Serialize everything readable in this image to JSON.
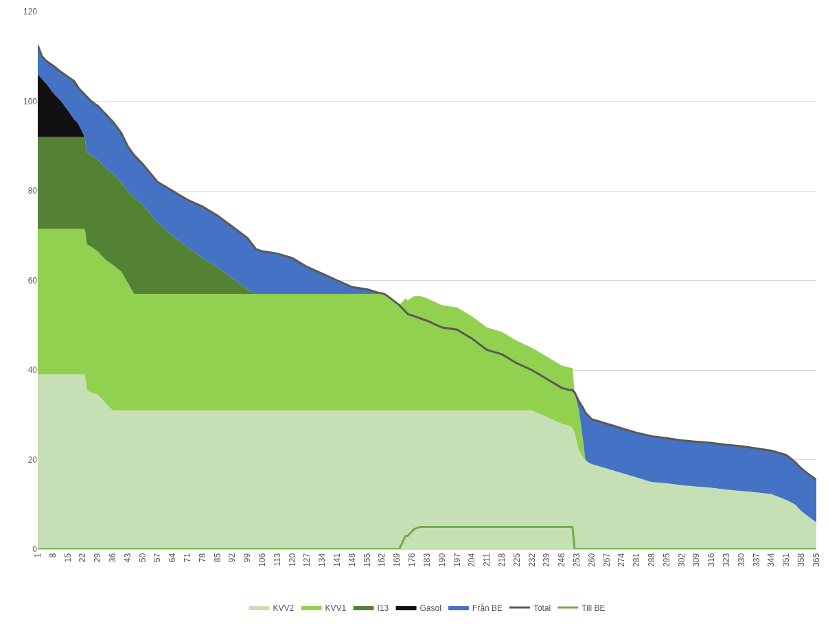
{
  "chart_data": {
    "type": "area",
    "stacked": true,
    "grid": "y",
    "legend": "bottom",
    "x": [
      1,
      3,
      5,
      8,
      12,
      15,
      18,
      20,
      22,
      23,
      24,
      26,
      29,
      33,
      36,
      40,
      43,
      46,
      50,
      57,
      64,
      71,
      78,
      85,
      92,
      99,
      103,
      106,
      113,
      120,
      127,
      134,
      141,
      148,
      155,
      160,
      163,
      166,
      170,
      173,
      174,
      177,
      180,
      183,
      190,
      197,
      204,
      211,
      218,
      225,
      232,
      239,
      246,
      250,
      251,
      252,
      254,
      256,
      257,
      258,
      260,
      267,
      274,
      281,
      288,
      295,
      302,
      309,
      316,
      323,
      330,
      337,
      344,
      351,
      355,
      358,
      362,
      365
    ],
    "xlim": [
      1,
      365
    ],
    "xticks": [
      1,
      8,
      15,
      22,
      29,
      36,
      43,
      50,
      57,
      64,
      71,
      78,
      85,
      92,
      99,
      106,
      113,
      120,
      127,
      134,
      141,
      148,
      155,
      162,
      169,
      176,
      183,
      190,
      197,
      204,
      211,
      218,
      225,
      232,
      239,
      246,
      253,
      260,
      267,
      274,
      281,
      288,
      295,
      302,
      309,
      316,
      323,
      330,
      337,
      344,
      351,
      358,
      365
    ],
    "ylim": [
      0,
      120
    ],
    "yticks": [
      0,
      20,
      40,
      60,
      80,
      100,
      120
    ],
    "series": [
      {
        "name": "KVV2",
        "color": "#c5e0b4",
        "values": [
          39,
          39,
          39,
          39,
          39,
          39,
          39,
          39,
          39,
          39,
          35.5,
          35,
          34.5,
          32.5,
          31,
          31,
          31,
          31,
          31,
          31,
          31,
          31,
          31,
          31,
          31,
          31,
          31,
          31,
          31,
          31,
          31,
          31,
          31,
          31,
          31,
          31,
          31,
          31,
          31,
          31,
          31,
          31,
          31,
          31,
          31,
          31,
          31,
          31,
          31,
          31,
          31,
          29.5,
          28,
          27.5,
          27,
          26,
          22,
          20.5,
          20,
          19.5,
          19,
          18,
          17,
          16,
          15,
          14.7,
          14.3,
          14,
          13.7,
          13.3,
          13,
          12.7,
          12.3,
          11,
          10,
          8.5,
          7,
          6
        ]
      },
      {
        "name": "KVV1",
        "color": "#92d050",
        "values": [
          32.5,
          32.5,
          32.5,
          32.5,
          32.5,
          32.5,
          32.5,
          32.5,
          32.5,
          32.5,
          32.5,
          32.5,
          32,
          32,
          32.5,
          31,
          28.5,
          26,
          26,
          26,
          26,
          26,
          26,
          26,
          26,
          26,
          26,
          26,
          26,
          26,
          26,
          26,
          26,
          26,
          26,
          26,
          26,
          25,
          23.5,
          25,
          24.5,
          25.5,
          25.5,
          25,
          23.5,
          23,
          21,
          18.5,
          17.5,
          15.5,
          14,
          13.5,
          13,
          13,
          13.5,
          9,
          9,
          3.5,
          0,
          0,
          0,
          0,
          0,
          0,
          0,
          0,
          0,
          0,
          0,
          0,
          0,
          0,
          0,
          0,
          0,
          0,
          0,
          0
        ]
      },
      {
        "name": "I13",
        "color": "#548235",
        "values": [
          20.5,
          20.5,
          20.5,
          20.5,
          20.5,
          20.5,
          20.5,
          20.5,
          20.5,
          20.5,
          20.5,
          20.5,
          20.5,
          20.5,
          20.5,
          20,
          20.5,
          21.5,
          20,
          16,
          13,
          10.5,
          8,
          6,
          3.5,
          1,
          0,
          0,
          0,
          0,
          0,
          0,
          0,
          0,
          0,
          0,
          0,
          0,
          0,
          0,
          0,
          0,
          0,
          0,
          0,
          0,
          0,
          0,
          0,
          0,
          0,
          0,
          0,
          0,
          0,
          0,
          0,
          0,
          0,
          0,
          0,
          0,
          0,
          0,
          0,
          0,
          0,
          0,
          0,
          0,
          0,
          0,
          0,
          0,
          0,
          0,
          0,
          0
        ]
      },
      {
        "name": "Gasol",
        "color": "#111111",
        "values": [
          14,
          13,
          12,
          10,
          8,
          6,
          4,
          3,
          1,
          0,
          0,
          0,
          0,
          0,
          0,
          0,
          0,
          0,
          0,
          0,
          0,
          0,
          0,
          0,
          0,
          0,
          0,
          0,
          0,
          0,
          0,
          0,
          0,
          0,
          0,
          0,
          0,
          0,
          0,
          0,
          0,
          0,
          0,
          0,
          0,
          0,
          0,
          0,
          0,
          0,
          0,
          0,
          0,
          0,
          0,
          0,
          0,
          0,
          0,
          0,
          0,
          0,
          0,
          0,
          0,
          0,
          0,
          0,
          0,
          0,
          0,
          0,
          0,
          0,
          0,
          0,
          0,
          0
        ]
      },
      {
        "name": "Från BE",
        "color": "#4472c4",
        "values": [
          6.5,
          5,
          5,
          6,
          6.5,
          7.5,
          8.5,
          8,
          9,
          9.5,
          12.5,
          12,
          12,
          12,
          11.5,
          11,
          10,
          9.5,
          9,
          9,
          10,
          10.5,
          11.5,
          11.5,
          11.5,
          11.5,
          10,
          9.5,
          9,
          8,
          6,
          4.5,
          3,
          1.5,
          1,
          0.3,
          0,
          0,
          0,
          0,
          0,
          0,
          0,
          0,
          0,
          0,
          0,
          0,
          0,
          0,
          0,
          0,
          0,
          0,
          0,
          0,
          2,
          7.5,
          10.5,
          10.5,
          10,
          10,
          10,
          10,
          10.2,
          10.1,
          10,
          10,
          10,
          10,
          10,
          9.8,
          9.7,
          10,
          9.5,
          9.5,
          9.5,
          9.5
        ]
      },
      {
        "name": "Total",
        "type": "line",
        "color": "#595959",
        "values": [
          112.5,
          110,
          109,
          108,
          106.5,
          105.5,
          104.5,
          103,
          102,
          101.5,
          101,
          100,
          99,
          97,
          95.5,
          93,
          90,
          88,
          86,
          82,
          80,
          78,
          76.5,
          74.5,
          72,
          69.5,
          67,
          66.5,
          66,
          65,
          63,
          61.5,
          60,
          58.5,
          58,
          57.3,
          57,
          56,
          54.5,
          53,
          52.5,
          52,
          51.5,
          51,
          49.5,
          49,
          47,
          44.5,
          43.5,
          41.5,
          40,
          38,
          36,
          35.5,
          35.5,
          35,
          33,
          31.5,
          30.5,
          30,
          29,
          28,
          27,
          26,
          25.2,
          24.8,
          24.3,
          24,
          23.7,
          23.3,
          23,
          22.5,
          22,
          21,
          19.5,
          18,
          16.5,
          15.5
        ]
      },
      {
        "name": "Till BE",
        "type": "line",
        "color": "#70ad47",
        "values": [
          0,
          0,
          0,
          0,
          0,
          0,
          0,
          0,
          0,
          0,
          0,
          0,
          0,
          0,
          0,
          0,
          0,
          0,
          0,
          0,
          0,
          0,
          0,
          0,
          0,
          0,
          0,
          0,
          0,
          0,
          0,
          0,
          0,
          0,
          0,
          0,
          0,
          0,
          0,
          3,
          3,
          4.5,
          5,
          5,
          5,
          5,
          5,
          5,
          5,
          5,
          5,
          5,
          5,
          5,
          5,
          0,
          0,
          0,
          0,
          0,
          0,
          0,
          0,
          0,
          0,
          0,
          0,
          0,
          0,
          0,
          0,
          0,
          0,
          0,
          0,
          0,
          0,
          0
        ]
      }
    ]
  }
}
